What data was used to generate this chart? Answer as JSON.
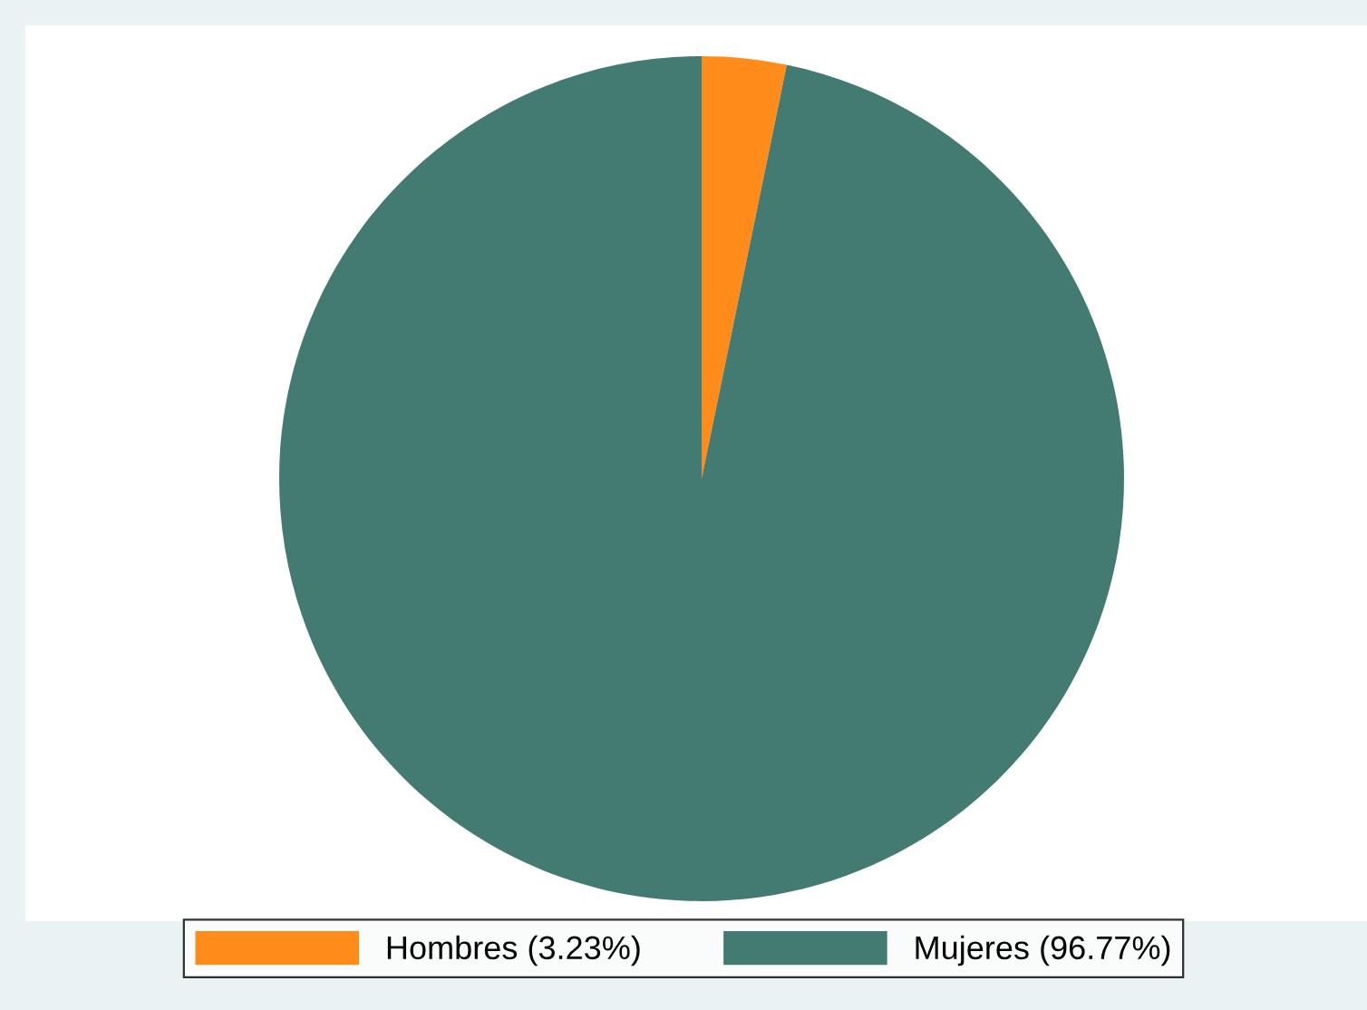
{
  "chart_data": {
    "type": "pie",
    "categories": [
      "Hombres (3.23%)",
      "Mujeres (96.77%)"
    ],
    "values": [
      3.23,
      96.77
    ],
    "colors": [
      "#ff8c1a",
      "#437b73"
    ],
    "legend": "bottom"
  }
}
